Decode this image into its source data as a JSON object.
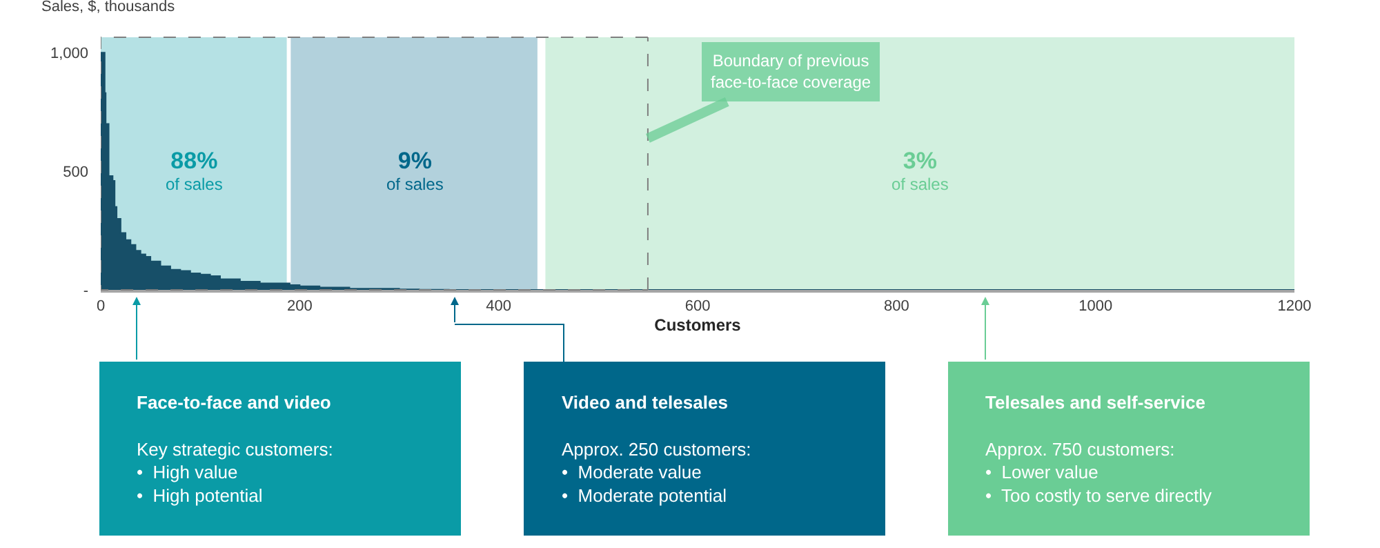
{
  "chart_data": {
    "type": "area",
    "ylabel": "Sales, $, thousands",
    "xlabel": "Customers",
    "x": [
      0,
      4,
      5,
      8,
      12,
      14,
      16,
      20,
      25,
      30,
      35,
      40,
      45,
      50,
      60,
      70,
      80,
      90,
      100,
      110,
      120,
      140,
      160,
      180,
      190,
      200,
      220,
      250,
      300,
      320,
      350,
      400,
      600,
      800,
      1000,
      1200
    ],
    "series": [
      {
        "color": "#174f68",
        "values": [
          1000,
          830,
          700,
          480,
          460,
          350,
          300,
          240,
          210,
          190,
          165,
          150,
          140,
          120,
          100,
          85,
          80,
          70,
          65,
          58,
          45,
          35,
          28,
          28,
          20,
          15,
          10,
          5,
          2,
          1,
          0,
          0,
          0,
          0,
          0,
          0
        ]
      }
    ],
    "xlim": [
      0,
      1200
    ],
    "xticks": [
      0,
      200,
      400,
      600,
      800,
      1000,
      1200
    ],
    "ylim": [
      0,
      1065
    ],
    "yticks": [
      {
        "value": 0,
        "label": "-"
      },
      500,
      {
        "value": 1000,
        "label": "1,000"
      }
    ],
    "marker": "none",
    "bands": [
      {
        "axis": "x",
        "from": 0,
        "to": 187,
        "label": "88%\nof sales",
        "color": "#0a9ba6"
      },
      {
        "axis": "x",
        "from": 191,
        "to": 439,
        "label": "9%\nof sales",
        "color": "#00678a"
      },
      {
        "axis": "x",
        "from": 447,
        "to": 1200,
        "label": "3%\nof sales",
        "color": "#6acd95"
      }
    ],
    "ref_lines": [
      {
        "axis": "x",
        "value": 550,
        "label": "Boundary of previous\nface-to-face coverage",
        "color": "#7f7f7f",
        "line_style": "dashed"
      }
    ],
    "annotations": [
      "Face-to-face and video\n\nKey strategic customers:\n•  High value\n•  High potential",
      "Video and telesales\n\nApprox. 250 customers:\n•  Moderate value\n•  Moderate potential",
      "Telesales and self-service\n\nApprox. 750 customers:\n•  Lower value\n•  Too costly to serve directly"
    ]
  }
}
